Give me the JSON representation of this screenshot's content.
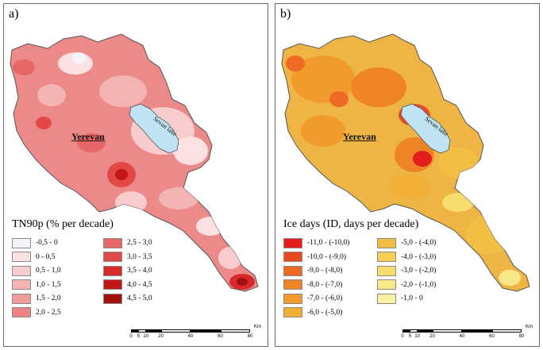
{
  "panels": [
    {
      "letter": "a)",
      "city_label": "Yerevan",
      "lake_label": "Sevan lake",
      "legend_title": "TN90p (% per decade)",
      "base_color": "#ec8a8a",
      "legend": [
        {
          "label": "-0,5 - 0",
          "color": "#f5f3f8"
        },
        {
          "label": "0 - 0,5",
          "color": "#fbe1e1"
        },
        {
          "label": "0,5 - 1,0",
          "color": "#f8cccc"
        },
        {
          "label": "1,0 - 1,5",
          "color": "#f4b4b4"
        },
        {
          "label": "1,5 - 2,0",
          "color": "#f09b9b"
        },
        {
          "label": "2,0 - 2,5",
          "color": "#ec8282"
        },
        {
          "label": "2,5 - 3,0",
          "color": "#e76767"
        },
        {
          "label": "3,0 - 3,5",
          "color": "#e24848"
        },
        {
          "label": "3,5 - 4,0",
          "color": "#d82a2a"
        },
        {
          "label": "4,0 - 4,5",
          "color": "#c21515"
        },
        {
          "label": "4,5 - 5,0",
          "color": "#a10f0f"
        }
      ]
    },
    {
      "letter": "b)",
      "city_label": "Yerevan",
      "lake_label": "Sevan lake",
      "legend_title": "Ice days (ID, days per decade)",
      "base_color": "#efb544",
      "legend": [
        {
          "label": "-11,0 - (-10,0)",
          "color": "#e41e1e"
        },
        {
          "label": "-10,0 - (-9,0)",
          "color": "#ea4a22"
        },
        {
          "label": "-9,0 - (-8,0)",
          "color": "#ee6a24"
        },
        {
          "label": "-8,0 - (-7,0)",
          "color": "#ef8427"
        },
        {
          "label": "-7,0 - (-6,0)",
          "color": "#f09b2c"
        },
        {
          "label": "-6,0 - (-5,0)",
          "color": "#f1af36"
        },
        {
          "label": "-5,0 - (-4,0)",
          "color": "#f2bf44"
        },
        {
          "label": "-4,0 - (-3,0)",
          "color": "#f5ce5a"
        },
        {
          "label": "-3,0 - (-2,0)",
          "color": "#f7dc6e"
        },
        {
          "label": "-2,0 - (-1,0)",
          "color": "#f9e78a"
        },
        {
          "label": "-1,0 - 0",
          "color": "#fbf1a6"
        }
      ]
    }
  ],
  "scale_bar": {
    "unit": "Km",
    "ticks": [
      "0",
      "5",
      "10",
      "20",
      "40",
      "60",
      "80"
    ]
  },
  "lake_color": "#bfe3f3"
}
